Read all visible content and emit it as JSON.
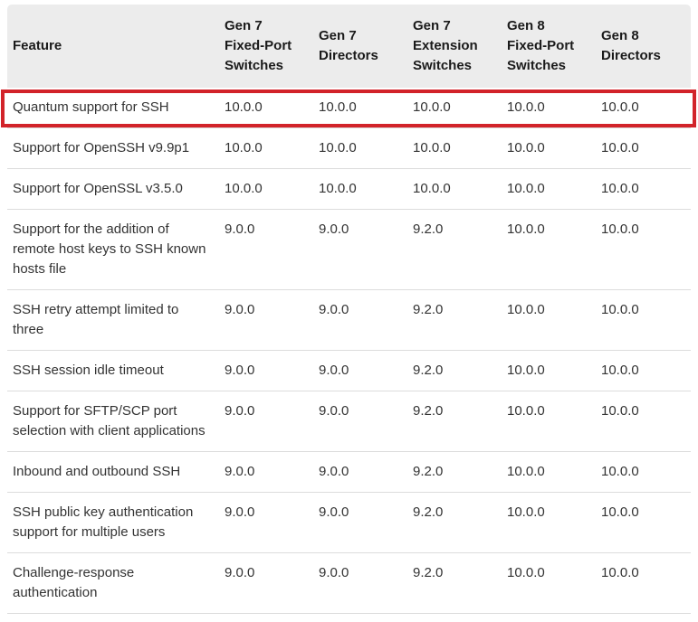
{
  "table": {
    "columns": [
      {
        "label": "Feature"
      },
      {
        "label": "Gen 7 Fixed-Port Switches"
      },
      {
        "label": "Gen 7 Directors"
      },
      {
        "label": "Gen 7 Extension Switches"
      },
      {
        "label": "Gen 8 Fixed-Port Switches"
      },
      {
        "label": "Gen 8 Directors"
      }
    ],
    "rows": [
      {
        "feature": "Quantum support for SSH",
        "values": [
          "10.0.0",
          "10.0.0",
          "10.0.0",
          "10.0.0",
          "10.0.0"
        ],
        "highlighted": true
      },
      {
        "feature": "Support for OpenSSH v9.9p1",
        "values": [
          "10.0.0",
          "10.0.0",
          "10.0.0",
          "10.0.0",
          "10.0.0"
        ],
        "highlighted": false
      },
      {
        "feature": "Support for OpenSSL v3.5.0",
        "values": [
          "10.0.0",
          "10.0.0",
          "10.0.0",
          "10.0.0",
          "10.0.0"
        ],
        "highlighted": false
      },
      {
        "feature": "Support for the addition of remote host keys to SSH known hosts file",
        "values": [
          "9.0.0",
          "9.0.0",
          "9.2.0",
          "10.0.0",
          "10.0.0"
        ],
        "highlighted": false
      },
      {
        "feature": "SSH retry attempt limited to three",
        "values": [
          "9.0.0",
          "9.0.0",
          "9.2.0",
          "10.0.0",
          "10.0.0"
        ],
        "highlighted": false
      },
      {
        "feature": "SSH session idle timeout",
        "values": [
          "9.0.0",
          "9.0.0",
          "9.2.0",
          "10.0.0",
          "10.0.0"
        ],
        "highlighted": false
      },
      {
        "feature": "Support for SFTP/SCP port selection with client applications",
        "values": [
          "9.0.0",
          "9.0.0",
          "9.2.0",
          "10.0.0",
          "10.0.0"
        ],
        "highlighted": false
      },
      {
        "feature": "Inbound and outbound SSH",
        "values": [
          "9.0.0",
          "9.0.0",
          "9.2.0",
          "10.0.0",
          "10.0.0"
        ],
        "highlighted": false
      },
      {
        "feature": "SSH public key authentication support for multiple users",
        "values": [
          "9.0.0",
          "9.0.0",
          "9.2.0",
          "10.0.0",
          "10.0.0"
        ],
        "highlighted": false
      },
      {
        "feature": "Challenge-response authentication",
        "values": [
          "9.0.0",
          "9.0.0",
          "9.2.0",
          "10.0.0",
          "10.0.0"
        ],
        "highlighted": false
      }
    ]
  },
  "colors": {
    "highlight": "#d2232a",
    "header_bg": "#ececec",
    "divider": "#dcdcdc",
    "text": "#333333",
    "header_text": "#1a1a1a"
  }
}
